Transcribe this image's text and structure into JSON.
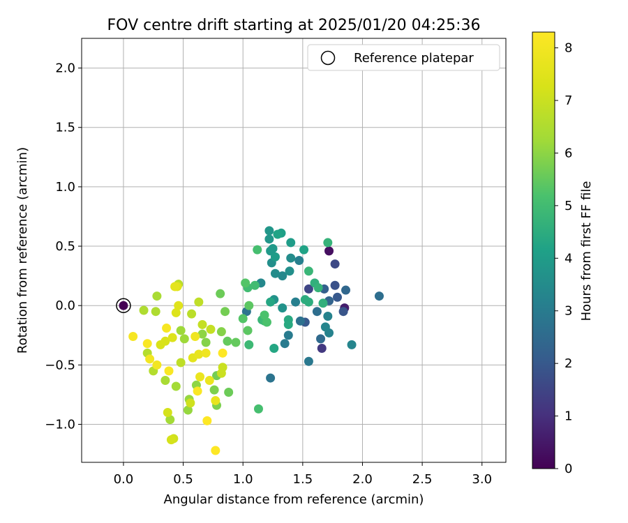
{
  "chart_data": {
    "type": "scatter",
    "title": "FOV centre drift starting at 2025/01/20 04:25:36",
    "xlabel": "Angular distance from reference (arcmin)",
    "ylabel": "Rotation from reference (arcmin)",
    "colorbar_label": "Hours from first FF file",
    "xlim": [
      -0.35,
      3.2
    ],
    "ylim": [
      -1.32,
      2.25
    ],
    "x_ticks": [
      0.0,
      0.5,
      1.0,
      1.5,
      2.0,
      2.5,
      3.0
    ],
    "x_tick_labels": [
      "0.0",
      "0.5",
      "1.0",
      "1.5",
      "2.0",
      "2.5",
      "3.0"
    ],
    "y_ticks": [
      -1.0,
      -0.5,
      0.0,
      0.5,
      1.0,
      1.5,
      2.0
    ],
    "y_tick_labels": [
      "−1.0",
      "−0.5",
      "0.0",
      "0.5",
      "1.0",
      "1.5",
      "2.0"
    ],
    "colorbar_range": [
      0,
      8.3
    ],
    "colorbar_ticks": [
      0,
      1,
      2,
      3,
      4,
      5,
      6,
      7,
      8
    ],
    "colorbar_tick_labels": [
      "0",
      "1",
      "2",
      "3",
      "4",
      "5",
      "6",
      "7",
      "8"
    ],
    "colormap": "viridis",
    "grid": true,
    "legend": {
      "placement": "top-right",
      "entries": [
        "Reference platepar"
      ]
    },
    "reference_point": {
      "x": 0.0,
      "y": 0.0,
      "hours": 0.0
    },
    "points": [
      {
        "x": 0.0,
        "y": 0.0,
        "h": 0.0
      },
      {
        "x": 1.72,
        "y": 0.46,
        "h": 0.3
      },
      {
        "x": 1.85,
        "y": -0.02,
        "h": 0.6
      },
      {
        "x": 1.66,
        "y": -0.36,
        "h": 1.2
      },
      {
        "x": 1.55,
        "y": 0.14,
        "h": 1.5
      },
      {
        "x": 1.77,
        "y": 0.35,
        "h": 1.6
      },
      {
        "x": 1.77,
        "y": 0.17,
        "h": 1.8
      },
      {
        "x": 1.84,
        "y": -0.05,
        "h": 1.9
      },
      {
        "x": 1.79,
        "y": 0.07,
        "h": 2.0
      },
      {
        "x": 1.52,
        "y": -0.14,
        "h": 2.0
      },
      {
        "x": 1.68,
        "y": 0.14,
        "h": 2.2
      },
      {
        "x": 1.72,
        "y": 0.04,
        "h": 2.3
      },
      {
        "x": 1.86,
        "y": 0.13,
        "h": 2.4
      },
      {
        "x": 1.65,
        "y": -0.28,
        "h": 2.5
      },
      {
        "x": 2.14,
        "y": 0.08,
        "h": 2.6
      },
      {
        "x": 1.62,
        "y": -0.05,
        "h": 2.6
      },
      {
        "x": 1.48,
        "y": -0.13,
        "h": 2.7
      },
      {
        "x": 1.03,
        "y": -0.05,
        "h": 2.8
      },
      {
        "x": 1.23,
        "y": -0.61,
        "h": 2.8
      },
      {
        "x": 1.55,
        "y": -0.47,
        "h": 2.9
      },
      {
        "x": 1.38,
        "y": -0.25,
        "h": 3.0
      },
      {
        "x": 1.35,
        "y": -0.32,
        "h": 3.0
      },
      {
        "x": 1.47,
        "y": 0.38,
        "h": 3.1
      },
      {
        "x": 1.44,
        "y": 0.03,
        "h": 3.1
      },
      {
        "x": 1.71,
        "y": -0.09,
        "h": 3.2
      },
      {
        "x": 1.72,
        "y": -0.23,
        "h": 3.2
      },
      {
        "x": 1.69,
        "y": -0.18,
        "h": 3.3
      },
      {
        "x": 1.91,
        "y": -0.33,
        "h": 3.3
      },
      {
        "x": 1.15,
        "y": 0.19,
        "h": 3.4
      },
      {
        "x": 1.33,
        "y": 0.25,
        "h": 3.4
      },
      {
        "x": 1.27,
        "y": 0.27,
        "h": 3.5
      },
      {
        "x": 1.4,
        "y": 0.4,
        "h": 3.5
      },
      {
        "x": 1.24,
        "y": 0.36,
        "h": 3.6
      },
      {
        "x": 1.39,
        "y": 0.29,
        "h": 3.6
      },
      {
        "x": 1.33,
        "y": -0.02,
        "h": 3.7
      },
      {
        "x": 1.26,
        "y": 0.05,
        "h": 3.7
      },
      {
        "x": 1.22,
        "y": 0.63,
        "h": 3.8
      },
      {
        "x": 1.22,
        "y": 0.56,
        "h": 3.8
      },
      {
        "x": 1.23,
        "y": 0.46,
        "h": 3.9
      },
      {
        "x": 1.25,
        "y": 0.48,
        "h": 3.9
      },
      {
        "x": 1.27,
        "y": 0.41,
        "h": 4.0
      },
      {
        "x": 1.4,
        "y": 0.53,
        "h": 4.0
      },
      {
        "x": 1.32,
        "y": 0.61,
        "h": 4.1
      },
      {
        "x": 1.29,
        "y": 0.6,
        "h": 4.2
      },
      {
        "x": 1.51,
        "y": 0.47,
        "h": 4.2
      },
      {
        "x": 1.23,
        "y": 0.03,
        "h": 4.3
      },
      {
        "x": 1.26,
        "y": -0.36,
        "h": 4.3
      },
      {
        "x": 1.38,
        "y": -0.12,
        "h": 4.4
      },
      {
        "x": 1.38,
        "y": -0.16,
        "h": 4.4
      },
      {
        "x": 1.52,
        "y": 0.05,
        "h": 4.5
      },
      {
        "x": 1.55,
        "y": 0.03,
        "h": 4.5
      },
      {
        "x": 1.6,
        "y": 0.19,
        "h": 4.6
      },
      {
        "x": 1.67,
        "y": 0.02,
        "h": 4.6
      },
      {
        "x": 1.63,
        "y": 0.15,
        "h": 4.7
      },
      {
        "x": 1.71,
        "y": 0.53,
        "h": 4.7
      },
      {
        "x": 1.55,
        "y": 0.29,
        "h": 4.8
      },
      {
        "x": 1.16,
        "y": -0.12,
        "h": 4.8
      },
      {
        "x": 1.18,
        "y": -0.13,
        "h": 4.9
      },
      {
        "x": 1.05,
        "y": -0.33,
        "h": 4.9
      },
      {
        "x": 1.04,
        "y": 0.15,
        "h": 5.0
      },
      {
        "x": 1.1,
        "y": 0.17,
        "h": 5.0
      },
      {
        "x": 1.13,
        "y": -0.87,
        "h": 5.1
      },
      {
        "x": 1.12,
        "y": 0.47,
        "h": 5.1
      },
      {
        "x": 1.2,
        "y": -0.14,
        "h": 5.2
      },
      {
        "x": 1.18,
        "y": -0.08,
        "h": 5.2
      },
      {
        "x": 1.02,
        "y": 0.19,
        "h": 5.3
      },
      {
        "x": 1.0,
        "y": -0.11,
        "h": 5.3
      },
      {
        "x": 1.05,
        "y": 0.0,
        "h": 5.4
      },
      {
        "x": 1.04,
        "y": -0.21,
        "h": 5.4
      },
      {
        "x": 0.94,
        "y": -0.31,
        "h": 5.5
      },
      {
        "x": 0.87,
        "y": -0.3,
        "h": 5.5
      },
      {
        "x": 0.88,
        "y": -0.73,
        "h": 5.6
      },
      {
        "x": 0.81,
        "y": 0.1,
        "h": 5.6
      },
      {
        "x": 0.85,
        "y": -0.05,
        "h": 5.7
      },
      {
        "x": 0.78,
        "y": -0.59,
        "h": 5.7
      },
      {
        "x": 0.76,
        "y": -0.71,
        "h": 5.8
      },
      {
        "x": 0.78,
        "y": -0.84,
        "h": 5.8
      },
      {
        "x": 0.82,
        "y": -0.22,
        "h": 5.9
      },
      {
        "x": 0.69,
        "y": -0.31,
        "h": 5.9
      },
      {
        "x": 0.66,
        "y": -0.24,
        "h": 6.0
      },
      {
        "x": 0.61,
        "y": -0.67,
        "h": 6.0
      },
      {
        "x": 0.55,
        "y": -0.79,
        "h": 6.1
      },
      {
        "x": 0.54,
        "y": -0.88,
        "h": 6.1
      },
      {
        "x": 0.48,
        "y": -0.21,
        "h": 6.2
      },
      {
        "x": 0.51,
        "y": -0.28,
        "h": 6.2
      },
      {
        "x": 0.44,
        "y": -0.68,
        "h": 6.3
      },
      {
        "x": 0.39,
        "y": -0.96,
        "h": 6.3
      },
      {
        "x": 0.35,
        "y": -0.63,
        "h": 6.4
      },
      {
        "x": 0.28,
        "y": 0.08,
        "h": 6.4
      },
      {
        "x": 0.27,
        "y": -0.05,
        "h": 6.5
      },
      {
        "x": 0.17,
        "y": -0.04,
        "h": 6.5
      },
      {
        "x": 0.2,
        "y": -0.4,
        "h": 6.6
      },
      {
        "x": 0.25,
        "y": -0.55,
        "h": 6.6
      },
      {
        "x": 0.46,
        "y": 0.18,
        "h": 6.7
      },
      {
        "x": 0.57,
        "y": -0.07,
        "h": 6.7
      },
      {
        "x": 0.48,
        "y": -0.48,
        "h": 6.8
      },
      {
        "x": 0.63,
        "y": 0.03,
        "h": 6.8
      },
      {
        "x": 0.66,
        "y": -0.16,
        "h": 6.9
      },
      {
        "x": 0.73,
        "y": -0.2,
        "h": 6.9
      },
      {
        "x": 0.83,
        "y": -0.52,
        "h": 7.0
      },
      {
        "x": 0.82,
        "y": -0.57,
        "h": 7.0
      },
      {
        "x": 0.56,
        "y": -0.82,
        "h": 7.1
      },
      {
        "x": 0.42,
        "y": -1.12,
        "h": 7.1
      },
      {
        "x": 0.4,
        "y": -1.13,
        "h": 7.2
      },
      {
        "x": 0.37,
        "y": -0.9,
        "h": 7.2
      },
      {
        "x": 0.31,
        "y": -0.33,
        "h": 7.3
      },
      {
        "x": 0.35,
        "y": -0.3,
        "h": 7.3
      },
      {
        "x": 0.41,
        "y": -0.27,
        "h": 7.4
      },
      {
        "x": 0.44,
        "y": -0.06,
        "h": 7.4
      },
      {
        "x": 0.46,
        "y": 0.0,
        "h": 7.5
      },
      {
        "x": 0.45,
        "y": 0.16,
        "h": 7.5
      },
      {
        "x": 0.43,
        "y": 0.16,
        "h": 7.6
      },
      {
        "x": 0.58,
        "y": -0.44,
        "h": 7.6
      },
      {
        "x": 0.63,
        "y": -0.41,
        "h": 7.7
      },
      {
        "x": 0.77,
        "y": -0.8,
        "h": 7.7
      },
      {
        "x": 0.72,
        "y": -0.63,
        "h": 7.8
      },
      {
        "x": 0.64,
        "y": -0.6,
        "h": 7.8
      },
      {
        "x": 0.69,
        "y": -0.4,
        "h": 7.9
      },
      {
        "x": 0.6,
        "y": -0.26,
        "h": 7.9
      },
      {
        "x": 0.22,
        "y": -0.45,
        "h": 8.0
      },
      {
        "x": 0.28,
        "y": -0.5,
        "h": 8.0
      },
      {
        "x": 0.36,
        "y": -0.19,
        "h": 8.1
      },
      {
        "x": 0.08,
        "y": -0.26,
        "h": 8.1
      },
      {
        "x": 0.2,
        "y": -0.32,
        "h": 8.2
      },
      {
        "x": 0.38,
        "y": -0.55,
        "h": 8.2
      },
      {
        "x": 0.62,
        "y": -0.72,
        "h": 8.2
      },
      {
        "x": 0.7,
        "y": -0.97,
        "h": 8.3
      },
      {
        "x": 0.77,
        "y": -1.22,
        "h": 8.3
      },
      {
        "x": 0.83,
        "y": -0.4,
        "h": 8.3
      }
    ]
  }
}
